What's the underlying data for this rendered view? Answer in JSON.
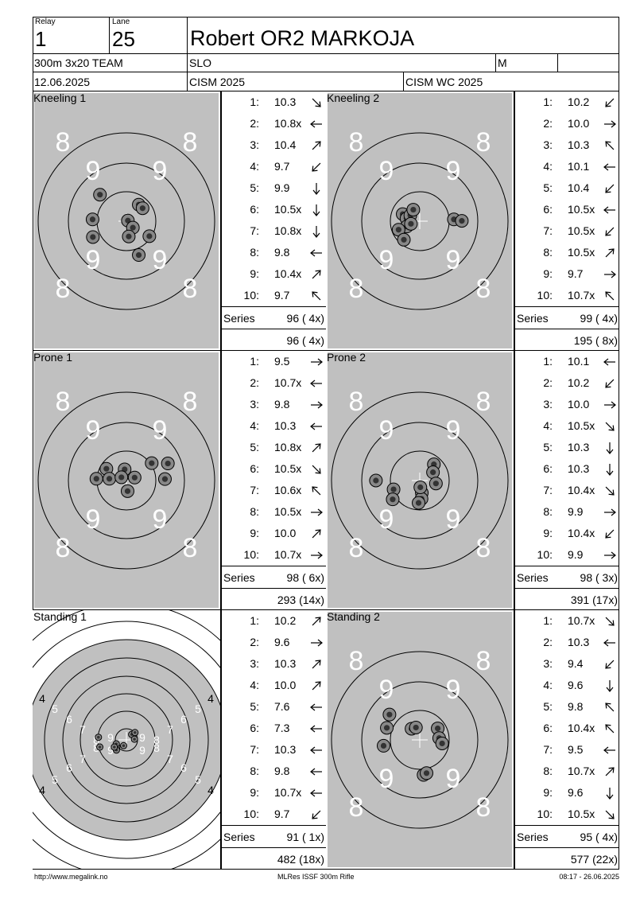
{
  "header": {
    "relay_label": "Relay",
    "relay_value": "1",
    "lane_label": "Lane",
    "lane_value": "25",
    "athlete_name": "Robert OR2 MARKOJA",
    "event": "300m 3x20 TEAM",
    "nation": "SLO",
    "gender": "M",
    "date": "12.06.2025",
    "competition": "CISM 2025",
    "championship": "CISM WC 2025"
  },
  "panels": [
    {
      "title": "Kneeling 1",
      "target": "gray",
      "shots": [
        {
          "n": "1:",
          "v": "10.3",
          "dir": "se"
        },
        {
          "n": "2:",
          "v": "10.8x",
          "dir": "w"
        },
        {
          "n": "3:",
          "v": "10.4",
          "dir": "ne"
        },
        {
          "n": "4:",
          "v": "9.7",
          "dir": "sw"
        },
        {
          "n": "5:",
          "v": "9.9",
          "dir": "s"
        },
        {
          "n": "6:",
          "v": "10.5x",
          "dir": "s"
        },
        {
          "n": "7:",
          "v": "10.8x",
          "dir": "s"
        },
        {
          "n": "8:",
          "v": "9.8",
          "dir": "w"
        },
        {
          "n": "9:",
          "v": "10.4x",
          "dir": "ne"
        },
        {
          "n": "10:",
          "v": "9.7",
          "dir": "nw"
        }
      ],
      "series_label": "Series",
      "series_total": "96 ( 4x)",
      "cumulative": "96 ( 4x)",
      "impacts": [
        [
          -0.9,
          0.9
        ],
        [
          -1.15,
          0.06
        ],
        [
          -1.14,
          -0.54
        ],
        [
          0.42,
          0.56
        ],
        [
          0.55,
          0.44
        ],
        [
          0.05,
          0.02
        ],
        [
          0.22,
          -0.22
        ],
        [
          0.08,
          -0.52
        ],
        [
          0.78,
          -0.51
        ],
        [
          0.42,
          -1.15
        ]
      ]
    },
    {
      "title": "Kneeling 2",
      "target": "gray",
      "shots": [
        {
          "n": "1:",
          "v": "10.2",
          "dir": "sw"
        },
        {
          "n": "2:",
          "v": "10.0",
          "dir": "e"
        },
        {
          "n": "3:",
          "v": "10.3",
          "dir": "nw"
        },
        {
          "n": "4:",
          "v": "10.1",
          "dir": "w"
        },
        {
          "n": "5:",
          "v": "10.4",
          "dir": "sw"
        },
        {
          "n": "6:",
          "v": "10.5x",
          "dir": "w"
        },
        {
          "n": "7:",
          "v": "10.5x",
          "dir": "sw"
        },
        {
          "n": "8:",
          "v": "10.5x",
          "dir": "ne"
        },
        {
          "n": "9:",
          "v": "9.7",
          "dir": "e"
        },
        {
          "n": "10:",
          "v": "10.7x",
          "dir": "nw"
        }
      ],
      "series_label": "Series",
      "series_total": "99 ( 4x)",
      "cumulative": "195 ( 8x)",
      "impacts": [
        [
          -0.58,
          0.24
        ],
        [
          -0.45,
          0.09
        ],
        [
          -0.32,
          0.2
        ],
        [
          -0.44,
          -0.18
        ],
        [
          -0.3,
          -0.09
        ],
        [
          -0.72,
          -0.29
        ],
        [
          -0.54,
          -0.63
        ],
        [
          -0.22,
          0.39
        ],
        [
          1.16,
          0.06
        ],
        [
          1.43,
          0.01
        ]
      ]
    },
    {
      "title": "Prone 1",
      "target": "gray",
      "shots": [
        {
          "n": "1:",
          "v": "9.5",
          "dir": "e"
        },
        {
          "n": "2:",
          "v": "10.7x",
          "dir": "w"
        },
        {
          "n": "3:",
          "v": "9.8",
          "dir": "e"
        },
        {
          "n": "4:",
          "v": "10.3",
          "dir": "w"
        },
        {
          "n": "5:",
          "v": "10.8x",
          "dir": "ne"
        },
        {
          "n": "6:",
          "v": "10.5x",
          "dir": "se"
        },
        {
          "n": "7:",
          "v": "10.6x",
          "dir": "nw"
        },
        {
          "n": "8:",
          "v": "10.5x",
          "dir": "e"
        },
        {
          "n": "9:",
          "v": "10.0",
          "dir": "ne"
        },
        {
          "n": "10:",
          "v": "10.7x",
          "dir": "e"
        }
      ],
      "series_label": "Series",
      "series_total": "98 ( 6x)",
      "cumulative": "293 (14x)",
      "impacts": [
        [
          -1.02,
          0.06
        ],
        [
          -0.68,
          0.4
        ],
        [
          -0.58,
          0.06
        ],
        [
          -0.06,
          0.38
        ],
        [
          -0.17,
          0.11
        ],
        [
          0.04,
          -0.36
        ],
        [
          0.28,
          0.1
        ],
        [
          0.86,
          0.59
        ],
        [
          1.31,
          0.05
        ],
        [
          1.41,
          0.58
        ]
      ]
    },
    {
      "title": "Prone 2",
      "target": "gray",
      "shots": [
        {
          "n": "1:",
          "v": "10.1",
          "dir": "w"
        },
        {
          "n": "2:",
          "v": "10.2",
          "dir": "sw"
        },
        {
          "n": "3:",
          "v": "10.0",
          "dir": "e"
        },
        {
          "n": "4:",
          "v": "10.5x",
          "dir": "se"
        },
        {
          "n": "5:",
          "v": "10.3",
          "dir": "s"
        },
        {
          "n": "6:",
          "v": "10.3",
          "dir": "s"
        },
        {
          "n": "7:",
          "v": "10.4x",
          "dir": "se"
        },
        {
          "n": "8:",
          "v": "9.9",
          "dir": "e"
        },
        {
          "n": "9:",
          "v": "10.4x",
          "dir": "sw"
        },
        {
          "n": "10:",
          "v": "9.9",
          "dir": "e"
        }
      ],
      "series_label": "Series",
      "series_total": "98 ( 3x)",
      "cumulative": "391 (17x)",
      "impacts": [
        [
          -1.49,
          0.0
        ],
        [
          -0.89,
          -0.3
        ],
        [
          -0.92,
          -0.64
        ],
        [
          0.07,
          -0.42
        ],
        [
          0.06,
          -0.62
        ],
        [
          -0.04,
          -0.76
        ],
        [
          0.48,
          0.55
        ],
        [
          0.45,
          0.28
        ],
        [
          0.55,
          -0.1
        ],
        [
          0.02,
          -0.23
        ]
      ]
    },
    {
      "title": "Standing 1",
      "target": "white",
      "shots": [
        {
          "n": "1:",
          "v": "10.2",
          "dir": "ne"
        },
        {
          "n": "2:",
          "v": "9.6",
          "dir": "e"
        },
        {
          "n": "3:",
          "v": "10.3",
          "dir": "ne"
        },
        {
          "n": "4:",
          "v": "10.0",
          "dir": "ne"
        },
        {
          "n": "5:",
          "v": "7.6",
          "dir": "w"
        },
        {
          "n": "6:",
          "v": "7.3",
          "dir": "w"
        },
        {
          "n": "7:",
          "v": "10.3",
          "dir": "w"
        },
        {
          "n": "8:",
          "v": "9.8",
          "dir": "w"
        },
        {
          "n": "9:",
          "v": "10.7x",
          "dir": "w"
        },
        {
          "n": "10:",
          "v": "9.7",
          "dir": "sw"
        }
      ],
      "series_label": "Series",
      "series_total": "91 ( 1x)",
      "cumulative": "482 (18x)",
      "impacts": [
        [
          -1.52,
          -0.41
        ],
        [
          -0.55,
          -0.39
        ],
        [
          -0.57,
          -0.58
        ],
        [
          -1.6,
          0.15
        ],
        [
          -0.16,
          -0.33
        ],
        [
          -0.58,
          -0.23
        ],
        [
          -0.69,
          -0.41
        ],
        [
          0.3,
          0.31
        ],
        [
          0.49,
          0.42
        ],
        [
          0.46,
          0.04
        ]
      ]
    },
    {
      "title": "Standing 2",
      "target": "gray",
      "shots": [
        {
          "n": "1:",
          "v": "10.7x",
          "dir": "se"
        },
        {
          "n": "2:",
          "v": "10.3",
          "dir": "w"
        },
        {
          "n": "3:",
          "v": "9.4",
          "dir": "sw"
        },
        {
          "n": "4:",
          "v": "9.6",
          "dir": "s"
        },
        {
          "n": "5:",
          "v": "9.8",
          "dir": "nw"
        },
        {
          "n": "6:",
          "v": "10.4x",
          "dir": "nw"
        },
        {
          "n": "7:",
          "v": "9.5",
          "dir": "w"
        },
        {
          "n": "8:",
          "v": "10.7x",
          "dir": "ne"
        },
        {
          "n": "9:",
          "v": "9.6",
          "dir": "s"
        },
        {
          "n": "10:",
          "v": "10.5x",
          "dir": "se"
        }
      ],
      "series_label": "Series",
      "series_total": "95 ( 4x)",
      "cumulative": "577 (22x)",
      "impacts": [
        [
          -1.03,
          0.86
        ],
        [
          -1.12,
          0.41
        ],
        [
          -1.23,
          -0.2
        ],
        [
          -0.28,
          0.38
        ],
        [
          -0.13,
          0.42
        ],
        [
          0.61,
          0.39
        ],
        [
          0.66,
          0.06
        ],
        [
          0.76,
          -0.12
        ],
        [
          0.13,
          -1.19
        ],
        [
          0.23,
          -1.13
        ]
      ]
    }
  ],
  "footer": {
    "url": "http://www.megalink.no",
    "program": "MLRes ISSF 300m Rifle",
    "timestamp": "08:17 - 26.06.2025"
  },
  "colors": {
    "target_gray": "#c0c0c0",
    "impact_fill": "#333333"
  }
}
